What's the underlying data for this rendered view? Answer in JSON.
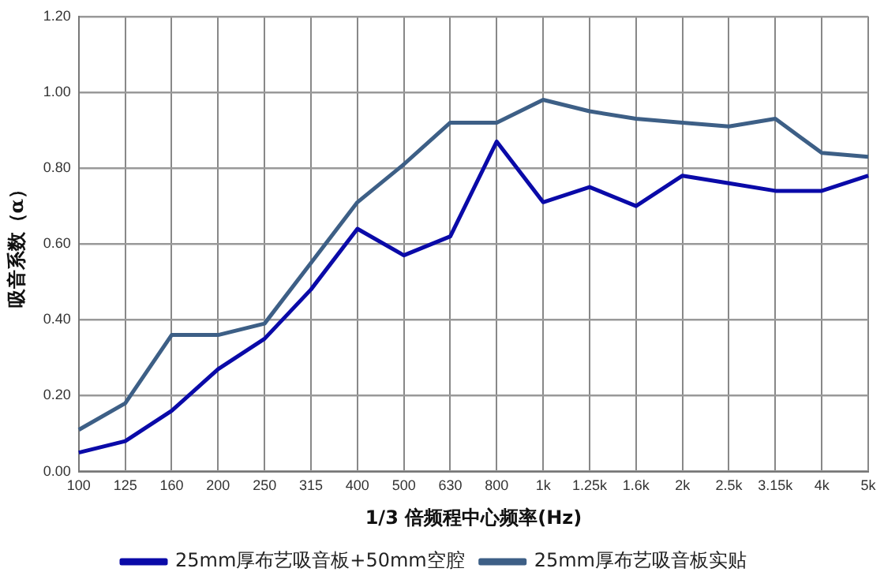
{
  "chart_data": {
    "type": "line",
    "xlabel": "1/3 倍频程中心频率(Hz)",
    "ylabel": "吸音系数（α）",
    "categories": [
      "100",
      "125",
      "160",
      "200",
      "250",
      "315",
      "400",
      "500",
      "630",
      "800",
      "1k",
      "1.25k",
      "1.6k",
      "2k",
      "2.5k",
      "3.15k",
      "4k",
      "5k"
    ],
    "series": [
      {
        "name": "25mm厚布艺吸音板+50mm空腔",
        "color": "#0a0aa8",
        "values": [
          0.05,
          0.08,
          0.16,
          0.27,
          0.35,
          0.48,
          0.64,
          0.57,
          0.62,
          0.87,
          0.71,
          0.75,
          0.7,
          0.78,
          0.76,
          0.74,
          0.74,
          0.78
        ]
      },
      {
        "name": "25mm厚布艺吸音板实贴",
        "color": "#3d5f86",
        "values": [
          0.11,
          0.18,
          0.36,
          0.36,
          0.39,
          0.55,
          0.71,
          0.81,
          0.92,
          0.92,
          0.98,
          0.95,
          0.93,
          0.92,
          0.91,
          0.93,
          0.84,
          0.83
        ]
      }
    ],
    "ylim": [
      0,
      1.2
    ],
    "yticks": [
      {
        "value": 0,
        "label": "0.00"
      },
      {
        "value": 0.2,
        "label": "0.20"
      },
      {
        "value": 0.4,
        "label": "0.40"
      },
      {
        "value": 0.6,
        "label": "0.60"
      },
      {
        "value": 0.8,
        "label": "0.80"
      },
      {
        "value": 1,
        "label": "1.00"
      },
      {
        "value": 1.2,
        "label": "1.20"
      }
    ],
    "grid": true,
    "legend": "bottom",
    "marker": "none",
    "line_style": "solid"
  }
}
